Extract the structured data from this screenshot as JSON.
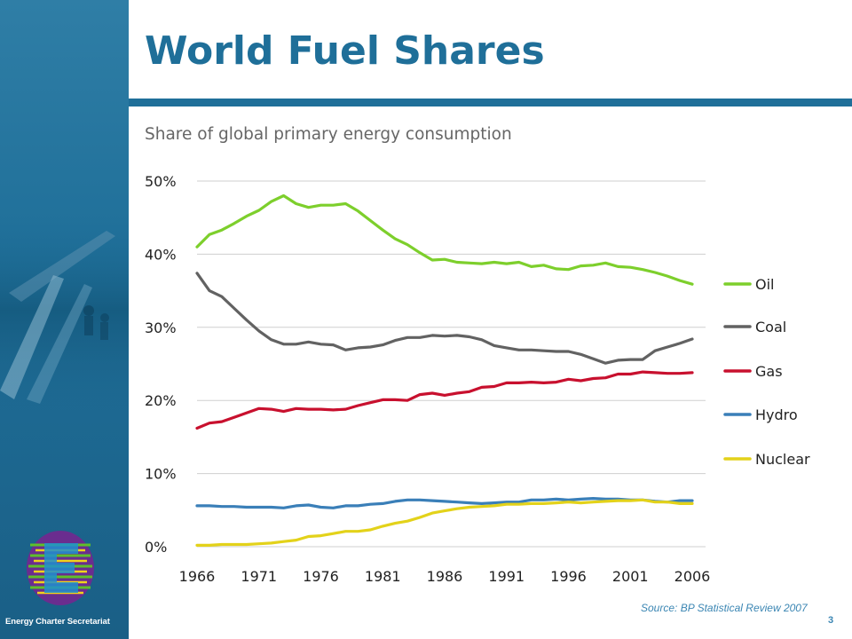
{
  "slide": {
    "title": "World Fuel Shares",
    "subtitle": "Share of global primary energy consumption",
    "source": "Source: BP Statistical Review 2007",
    "page_number": "3"
  },
  "sidebar": {
    "organization": "Energy Charter Secretariat"
  },
  "colors": {
    "brand_blue": "#1f6f99",
    "oil": "#7dcf2c",
    "coal": "#626262",
    "gas": "#c8102e",
    "hydro": "#3a7fb8",
    "nuclear": "#e3d21a"
  },
  "chart_data": {
    "type": "line",
    "title": "Share of global primary energy consumption",
    "xlabel": "",
    "ylabel": "",
    "x_ticks": [
      "1966",
      "1971",
      "1976",
      "1981",
      "1986",
      "1991",
      "1996",
      "2001",
      "2006"
    ],
    "y_ticks": [
      "0%",
      "10%",
      "20%",
      "30%",
      "40%",
      "50%"
    ],
    "xlim": [
      1966,
      2006
    ],
    "ylim": [
      0,
      50
    ],
    "grid": true,
    "legend_position": "right",
    "x": [
      1966,
      1967,
      1968,
      1969,
      1970,
      1971,
      1972,
      1973,
      1974,
      1975,
      1976,
      1977,
      1978,
      1979,
      1980,
      1981,
      1982,
      1983,
      1984,
      1985,
      1986,
      1987,
      1988,
      1989,
      1990,
      1991,
      1992,
      1993,
      1994,
      1995,
      1996,
      1997,
      1998,
      1999,
      2000,
      2001,
      2002,
      2003,
      2004,
      2005,
      2006
    ],
    "series": [
      {
        "name": "Oil",
        "color": "#7dcf2c",
        "values": [
          41.0,
          42.7,
          43.3,
          44.2,
          45.2,
          46.0,
          47.2,
          48.0,
          46.9,
          46.4,
          46.7,
          46.7,
          46.9,
          45.9,
          44.6,
          43.3,
          42.1,
          41.3,
          40.2,
          39.2,
          39.3,
          38.9,
          38.8,
          38.7,
          38.9,
          38.7,
          38.9,
          38.3,
          38.5,
          38.0,
          37.9,
          38.4,
          38.5,
          38.8,
          38.3,
          38.2,
          37.9,
          37.5,
          37.0,
          36.4,
          35.9
        ]
      },
      {
        "name": "Coal",
        "color": "#626262",
        "values": [
          37.4,
          35.0,
          34.2,
          32.6,
          31.0,
          29.5,
          28.3,
          27.7,
          27.7,
          28.0,
          27.7,
          27.6,
          26.9,
          27.2,
          27.3,
          27.6,
          28.2,
          28.6,
          28.6,
          28.9,
          28.8,
          28.9,
          28.7,
          28.3,
          27.5,
          27.2,
          26.9,
          26.9,
          26.8,
          26.7,
          26.7,
          26.3,
          25.7,
          25.1,
          25.5,
          25.6,
          25.6,
          26.8,
          27.3,
          27.8,
          28.4
        ]
      },
      {
        "name": "Gas",
        "color": "#c8102e",
        "values": [
          16.2,
          16.9,
          17.1,
          17.7,
          18.3,
          18.9,
          18.8,
          18.5,
          18.9,
          18.8,
          18.8,
          18.7,
          18.8,
          19.3,
          19.7,
          20.1,
          20.1,
          20.0,
          20.8,
          21.0,
          20.7,
          21.0,
          21.2,
          21.8,
          21.9,
          22.4,
          22.4,
          22.5,
          22.4,
          22.5,
          22.9,
          22.7,
          23.0,
          23.1,
          23.6,
          23.6,
          23.9,
          23.8,
          23.7,
          23.7,
          23.8
        ]
      },
      {
        "name": "Hydro",
        "color": "#3a7fb8",
        "values": [
          5.6,
          5.6,
          5.5,
          5.5,
          5.4,
          5.4,
          5.4,
          5.3,
          5.6,
          5.7,
          5.4,
          5.3,
          5.6,
          5.6,
          5.8,
          5.9,
          6.2,
          6.4,
          6.4,
          6.3,
          6.2,
          6.1,
          6.0,
          5.9,
          6.0,
          6.1,
          6.1,
          6.4,
          6.4,
          6.5,
          6.4,
          6.5,
          6.6,
          6.5,
          6.5,
          6.4,
          6.4,
          6.2,
          6.1,
          6.3,
          6.3
        ]
      },
      {
        "name": "Nuclear",
        "color": "#e3d21a",
        "values": [
          0.2,
          0.2,
          0.3,
          0.3,
          0.3,
          0.4,
          0.5,
          0.7,
          0.9,
          1.4,
          1.5,
          1.8,
          2.1,
          2.1,
          2.3,
          2.8,
          3.2,
          3.5,
          4.0,
          4.6,
          4.9,
          5.2,
          5.4,
          5.5,
          5.6,
          5.8,
          5.8,
          5.9,
          5.9,
          6.0,
          6.1,
          6.0,
          6.1,
          6.2,
          6.3,
          6.3,
          6.4,
          6.1,
          6.1,
          5.9,
          5.9
        ]
      }
    ]
  }
}
